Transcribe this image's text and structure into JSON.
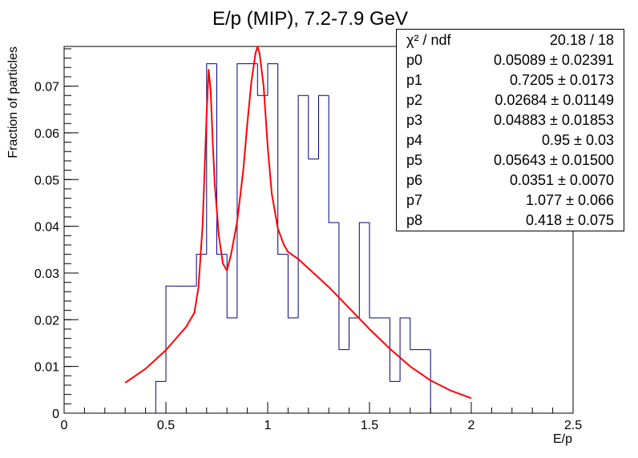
{
  "chart_data": {
    "type": "histogram",
    "title": "E/p (MIP), 7.2-7.9 GeV",
    "xlabel": "E/p",
    "ylabel": "Fraction of particles",
    "xlim": [
      0,
      2.5
    ],
    "ylim": [
      0,
      0.0785
    ],
    "x_ticks": [
      0,
      0.5,
      1,
      1.5,
      2,
      2.5
    ],
    "x_tick_labels": [
      "0",
      "0.5",
      "1",
      "1.5",
      "2",
      "2.5"
    ],
    "y_ticks": [
      0,
      0.01,
      0.02,
      0.03,
      0.04,
      0.05,
      0.06,
      0.07
    ],
    "y_tick_labels": [
      "0",
      "0.01",
      "0.02",
      "0.03",
      "0.04",
      "0.05",
      "0.06",
      "0.07"
    ],
    "grid": false,
    "histogram": {
      "color": "#000080",
      "bin_width": 0.05,
      "bin_edges": [
        0.45,
        0.5,
        0.55,
        0.6,
        0.65,
        0.7,
        0.75,
        0.8,
        0.85,
        0.9,
        0.95,
        1.0,
        1.05,
        1.1,
        1.15,
        1.2,
        1.25,
        1.3,
        1.35,
        1.4,
        1.45,
        1.5,
        1.55,
        1.6,
        1.65,
        1.7,
        1.75,
        1.8
      ],
      "values": [
        0.0068,
        0.0272,
        0.0272,
        0.0272,
        0.034,
        0.0748,
        0.034,
        0.0204,
        0.0748,
        0.0748,
        0.068,
        0.0748,
        0.034,
        0.0204,
        0.068,
        0.0544,
        0.068,
        0.0408,
        0.0136,
        0.0204,
        0.0408,
        0.0204,
        0.0204,
        0.0068,
        0.0204,
        0.0136,
        0.0136
      ]
    },
    "fit_curve": {
      "color": "#ff0000",
      "x": [
        0.3,
        0.4,
        0.5,
        0.55,
        0.6,
        0.64,
        0.66,
        0.68,
        0.7,
        0.71,
        0.72,
        0.73,
        0.74,
        0.76,
        0.78,
        0.8,
        0.82,
        0.85,
        0.88,
        0.9,
        0.92,
        0.94,
        0.95,
        0.96,
        0.98,
        1.0,
        1.02,
        1.05,
        1.08,
        1.1,
        1.15,
        1.2,
        1.3,
        1.4,
        1.5,
        1.6,
        1.7,
        1.8,
        1.9,
        2.0
      ],
      "y": [
        0.0065,
        0.0095,
        0.0135,
        0.016,
        0.0185,
        0.0215,
        0.027,
        0.04,
        0.064,
        0.0735,
        0.069,
        0.058,
        0.049,
        0.038,
        0.032,
        0.0305,
        0.034,
        0.041,
        0.052,
        0.062,
        0.071,
        0.077,
        0.0785,
        0.077,
        0.07,
        0.057,
        0.047,
        0.0395,
        0.036,
        0.0345,
        0.033,
        0.031,
        0.027,
        0.0225,
        0.018,
        0.0138,
        0.01,
        0.007,
        0.0048,
        0.0032
      ]
    }
  },
  "stats": [
    {
      "name": "χ² / ndf",
      "value": "20.18 / 18"
    },
    {
      "name": "p0",
      "value": "0.05089 ± 0.02391"
    },
    {
      "name": "p1",
      "value": "0.7205 ± 0.0173"
    },
    {
      "name": "p2",
      "value": "0.02684 ± 0.01149"
    },
    {
      "name": "p3",
      "value": "0.04883 ± 0.01853"
    },
    {
      "name": "p4",
      "value": "0.95 ± 0.03"
    },
    {
      "name": "p5",
      "value": "0.05643 ± 0.01500"
    },
    {
      "name": "p6",
      "value": "0.0351 ± 0.0070"
    },
    {
      "name": "p7",
      "value": "1.077 ± 0.066"
    },
    {
      "name": "p8",
      "value": "0.418 ± 0.075"
    }
  ]
}
